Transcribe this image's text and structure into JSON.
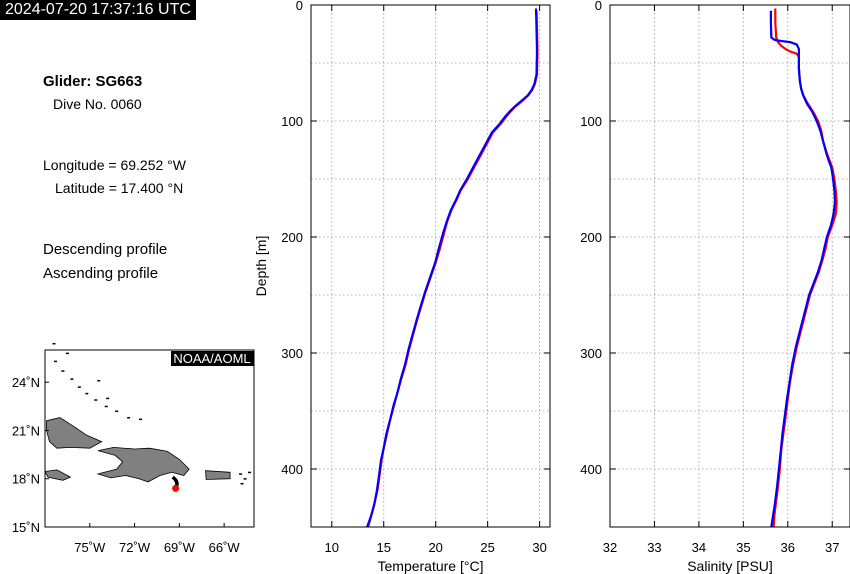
{
  "header": {
    "timestamp": "2024-07-20 17:37:16 UTC"
  },
  "info": {
    "glider": "Glider: SG663",
    "dive": "Dive No. 0060",
    "longitude": "Longitude = 69.252 °W",
    "latitude": "Latitude = 17.400 °N",
    "descending_label": "Descending profile",
    "ascending_label": "Ascending profile"
  },
  "colors": {
    "descending": "#ff0000",
    "ascending": "#0000ff",
    "land": "#808080"
  },
  "map": {
    "badge": "NOAA/AOML",
    "lat_ticks": [
      "24˚N",
      "21˚N",
      "18˚N",
      "15˚N"
    ],
    "lon_ticks": [
      "75˚W",
      "72˚W",
      "69˚W",
      "66˚W"
    ],
    "lon_range": [
      -78,
      -64
    ],
    "lat_range": [
      15,
      26
    ],
    "glider_position": {
      "lon": -69.252,
      "lat": 17.4
    }
  },
  "chart_data": [
    {
      "type": "line",
      "xlabel": "Temperature [°C]",
      "ylabel": "Depth [m]",
      "xlim": [
        8,
        31
      ],
      "ylim": [
        450,
        0
      ],
      "xticks": [
        10,
        15,
        20,
        25,
        30
      ],
      "yticks": [
        0,
        100,
        200,
        300,
        400
      ],
      "grid": true,
      "series": [
        {
          "name": "Descending profile",
          "points": [
            [
              29.7,
              5
            ],
            [
              29.75,
              20
            ],
            [
              29.8,
              40
            ],
            [
              29.75,
              60
            ],
            [
              29.55,
              68
            ],
            [
              29.3,
              73
            ],
            [
              28.9,
              78
            ],
            [
              28.3,
              83
            ],
            [
              27.6,
              88
            ],
            [
              27.2,
              92
            ],
            [
              26.8,
              96
            ],
            [
              26.3,
              102
            ],
            [
              25.5,
              110
            ],
            [
              24.9,
              120
            ],
            [
              24.3,
              130
            ],
            [
              23.7,
              140
            ],
            [
              23.1,
              150
            ],
            [
              22.4,
              160
            ],
            [
              22.0,
              168
            ],
            [
              21.5,
              177
            ],
            [
              21.1,
              187
            ],
            [
              20.8,
              197
            ],
            [
              20.4,
              210
            ],
            [
              20.0,
              222
            ],
            [
              19.5,
              235
            ],
            [
              19.0,
              248
            ],
            [
              18.6,
              260
            ],
            [
              18.2,
              272
            ],
            [
              17.8,
              285
            ],
            [
              17.4,
              298
            ],
            [
              17.1,
              310
            ],
            [
              16.7,
              322
            ],
            [
              16.3,
              335
            ],
            [
              16.0,
              345
            ],
            [
              15.6,
              358
            ],
            [
              15.3,
              370
            ],
            [
              15.0,
              382
            ],
            [
              14.8,
              392
            ],
            [
              14.6,
              405
            ],
            [
              14.4,
              418
            ],
            [
              14.1,
              430
            ],
            [
              13.8,
              440
            ],
            [
              13.5,
              450
            ]
          ]
        },
        {
          "name": "Ascending profile",
          "points": [
            [
              29.65,
              3
            ],
            [
              29.7,
              20
            ],
            [
              29.75,
              40
            ],
            [
              29.7,
              60
            ],
            [
              29.5,
              68
            ],
            [
              29.25,
              73
            ],
            [
              28.85,
              78
            ],
            [
              28.2,
              83
            ],
            [
              27.55,
              88
            ],
            [
              27.1,
              92
            ],
            [
              26.7,
              96
            ],
            [
              26.2,
              102
            ],
            [
              25.4,
              110
            ],
            [
              24.8,
              120
            ],
            [
              24.2,
              130
            ],
            [
              23.6,
              140
            ],
            [
              23.0,
              150
            ],
            [
              22.35,
              160
            ],
            [
              21.95,
              168
            ],
            [
              21.45,
              177
            ],
            [
              21.05,
              187
            ],
            [
              20.7,
              197
            ],
            [
              20.3,
              210
            ],
            [
              19.95,
              222
            ],
            [
              19.45,
              235
            ],
            [
              18.95,
              248
            ],
            [
              18.55,
              260
            ],
            [
              18.15,
              272
            ],
            [
              17.75,
              285
            ],
            [
              17.35,
              298
            ],
            [
              17.05,
              310
            ],
            [
              16.65,
              322
            ],
            [
              16.3,
              335
            ],
            [
              15.95,
              345
            ],
            [
              15.6,
              358
            ],
            [
              15.25,
              370
            ],
            [
              15.0,
              382
            ],
            [
              14.75,
              392
            ],
            [
              14.55,
              405
            ],
            [
              14.35,
              418
            ],
            [
              14.1,
              430
            ],
            [
              13.8,
              440
            ],
            [
              13.4,
              450
            ]
          ]
        }
      ]
    },
    {
      "type": "line",
      "xlabel": "Salinity [PSU]",
      "ylabel": "",
      "xlim": [
        32,
        37.4
      ],
      "ylim": [
        450,
        0
      ],
      "xticks": [
        32,
        33,
        34,
        35,
        36,
        37
      ],
      "yticks": [
        0,
        100,
        200,
        300,
        400
      ],
      "grid": true,
      "series": [
        {
          "name": "Descending profile",
          "points": [
            [
              35.72,
              3
            ],
            [
              35.72,
              15
            ],
            [
              35.74,
              28
            ],
            [
              35.78,
              32
            ],
            [
              35.85,
              35
            ],
            [
              35.95,
              38
            ],
            [
              36.05,
              40
            ],
            [
              36.2,
              42
            ],
            [
              36.25,
              45
            ],
            [
              36.25,
              55
            ],
            [
              36.27,
              65
            ],
            [
              36.3,
              72
            ],
            [
              36.35,
              78
            ],
            [
              36.45,
              85
            ],
            [
              36.57,
              92
            ],
            [
              36.68,
              100
            ],
            [
              36.75,
              108
            ],
            [
              36.8,
              118
            ],
            [
              36.88,
              128
            ],
            [
              36.95,
              135
            ],
            [
              37.0,
              140
            ],
            [
              37.05,
              150
            ],
            [
              37.08,
              160
            ],
            [
              37.1,
              170
            ],
            [
              37.08,
              180
            ],
            [
              37.0,
              190
            ],
            [
              36.9,
              200
            ],
            [
              36.85,
              210
            ],
            [
              36.78,
              220
            ],
            [
              36.7,
              230
            ],
            [
              36.6,
              240
            ],
            [
              36.5,
              250
            ],
            [
              36.4,
              265
            ],
            [
              36.3,
              280
            ],
            [
              36.2,
              295
            ],
            [
              36.12,
              310
            ],
            [
              36.05,
              325
            ],
            [
              36.0,
              340
            ],
            [
              35.95,
              355
            ],
            [
              35.9,
              370
            ],
            [
              35.85,
              385
            ],
            [
              35.82,
              400
            ],
            [
              35.78,
              415
            ],
            [
              35.73,
              430
            ],
            [
              35.7,
              440
            ],
            [
              35.68,
              450
            ]
          ]
        },
        {
          "name": "Ascending profile",
          "points": [
            [
              35.62,
              5
            ],
            [
              35.62,
              15
            ],
            [
              35.63,
              28
            ],
            [
              35.7,
              30
            ],
            [
              35.85,
              31
            ],
            [
              36.05,
              32
            ],
            [
              36.2,
              34
            ],
            [
              36.25,
              38
            ],
            [
              36.25,
              55
            ],
            [
              36.27,
              65
            ],
            [
              36.3,
              72
            ],
            [
              36.35,
              78
            ],
            [
              36.43,
              85
            ],
            [
              36.55,
              92
            ],
            [
              36.65,
              100
            ],
            [
              36.73,
              108
            ],
            [
              36.8,
              118
            ],
            [
              36.87,
              128
            ],
            [
              36.93,
              135
            ],
            [
              36.98,
              140
            ],
            [
              37.02,
              150
            ],
            [
              37.05,
              160
            ],
            [
              37.06,
              170
            ],
            [
              37.03,
              180
            ],
            [
              36.97,
              190
            ],
            [
              36.88,
              200
            ],
            [
              36.82,
              210
            ],
            [
              36.76,
              220
            ],
            [
              36.68,
              230
            ],
            [
              36.58,
              240
            ],
            [
              36.48,
              250
            ],
            [
              36.38,
              265
            ],
            [
              36.28,
              280
            ],
            [
              36.18,
              295
            ],
            [
              36.1,
              310
            ],
            [
              36.04,
              325
            ],
            [
              35.98,
              340
            ],
            [
              35.93,
              355
            ],
            [
              35.88,
              370
            ],
            [
              35.84,
              385
            ],
            [
              35.8,
              400
            ],
            [
              35.76,
              415
            ],
            [
              35.71,
              430
            ],
            [
              35.67,
              440
            ],
            [
              35.63,
              450
            ]
          ]
        }
      ]
    }
  ]
}
